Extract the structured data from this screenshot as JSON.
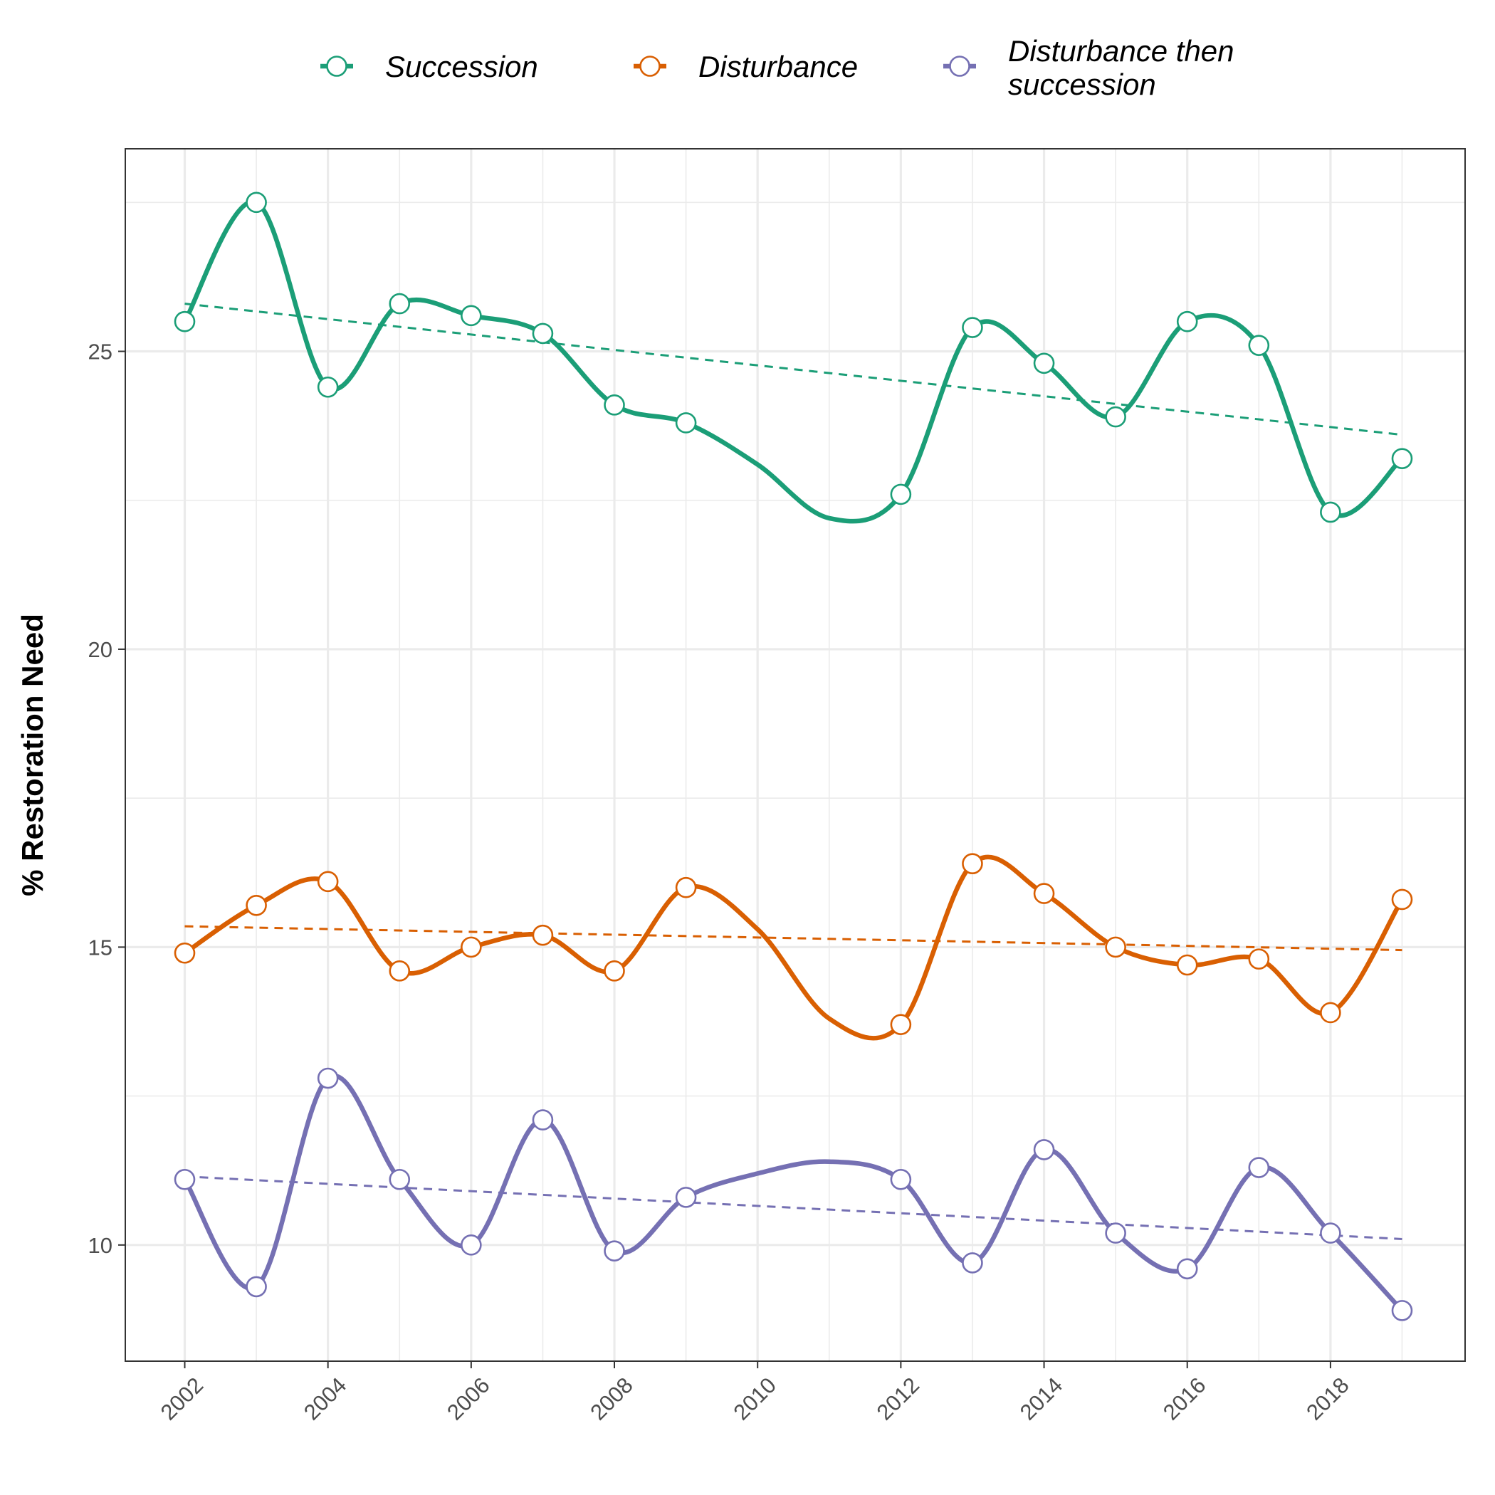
{
  "chart_data": {
    "type": "line",
    "title": "",
    "xlabel": "",
    "ylabel": "% Restoration Need",
    "x": [
      2002,
      2003,
      2004,
      2005,
      2006,
      2007,
      2008,
      2009,
      2010,
      2011,
      2012,
      2013,
      2014,
      2015,
      2016,
      2017,
      2018,
      2019
    ],
    "xticks": [
      "2002",
      "2004",
      "2006",
      "2008",
      "2010",
      "2012",
      "2014",
      "2016",
      "2018"
    ],
    "xtick_values": [
      2002,
      2004,
      2006,
      2008,
      2010,
      2012,
      2014,
      2016,
      2018
    ],
    "yticks": [
      "10",
      "15",
      "20",
      "25"
    ],
    "ytick_values": [
      10,
      15,
      20,
      25
    ],
    "xlim": [
      2001.17,
      2019.88
    ],
    "ylim": [
      8.05,
      28.4
    ],
    "grid": true,
    "legend_position": "top",
    "series": [
      {
        "name": "Succession",
        "color": "#1b9e77",
        "values": [
          25.5,
          27.5,
          24.4,
          25.8,
          25.6,
          25.3,
          24.1,
          23.8,
          null,
          null,
          22.6,
          25.4,
          24.8,
          23.9,
          25.5,
          25.1,
          22.3,
          23.2
        ],
        "smooth_values": [
          25.5,
          27.5,
          24.4,
          25.8,
          25.6,
          25.3,
          24.1,
          23.8,
          23.1,
          22.2,
          22.6,
          25.4,
          24.8,
          23.9,
          25.5,
          25.1,
          22.3,
          23.2
        ],
        "trend": [
          25.8,
          23.6
        ]
      },
      {
        "name": "Disturbance",
        "color": "#d95f02",
        "values": [
          14.9,
          15.7,
          16.1,
          14.6,
          15.0,
          15.2,
          14.6,
          16.0,
          null,
          null,
          13.7,
          16.4,
          15.9,
          15.0,
          14.7,
          14.8,
          13.9,
          15.8
        ],
        "smooth_values": [
          14.9,
          15.7,
          16.1,
          14.6,
          15.0,
          15.2,
          14.6,
          16.0,
          15.3,
          13.8,
          13.7,
          16.4,
          15.9,
          15.0,
          14.7,
          14.8,
          13.9,
          15.8
        ],
        "trend": [
          15.35,
          14.95
        ]
      },
      {
        "name": "Disturbance then\nsuccession",
        "color": "#7570b3",
        "values": [
          11.1,
          9.3,
          12.8,
          11.1,
          10.0,
          12.1,
          9.9,
          10.8,
          null,
          null,
          11.1,
          9.7,
          11.6,
          10.2,
          9.6,
          11.3,
          10.2,
          8.9
        ],
        "smooth_values": [
          11.1,
          9.3,
          12.8,
          11.1,
          10.0,
          12.1,
          9.9,
          10.8,
          11.2,
          11.4,
          11.1,
          9.7,
          11.6,
          10.2,
          9.6,
          11.3,
          10.2,
          8.9
        ],
        "trend": [
          11.15,
          10.1
        ]
      }
    ]
  }
}
